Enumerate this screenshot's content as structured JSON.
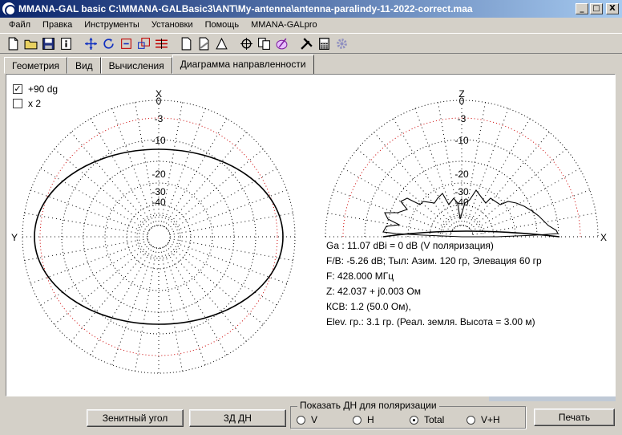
{
  "window": {
    "title": "MMANA-GAL basic C:\\MMANA-GALBasic3\\ANT\\My-antenna\\antenna-paralindy-11-2022-correct.maa",
    "minimize": "_",
    "maximize": "□",
    "close": "X"
  },
  "menu": [
    "Файл",
    "Правка",
    "Инструменты",
    "Установки",
    "Помощь",
    "MMANA-GALpro"
  ],
  "toolbar": {
    "icons": [
      "new-file-icon",
      "open-folder-icon",
      "save-icon",
      "info-icon",
      "move-icon",
      "rotate-icon",
      "stretch-icon",
      "scale-icon",
      "wires-icon",
      "page-icon",
      "page-edit-icon",
      "triangle-icon",
      "crosshair-icon",
      "copy-icon",
      "paint-icon",
      "tools-icon",
      "calculator-icon",
      "gear-icon"
    ]
  },
  "tabs": [
    "Геометрия",
    "Вид",
    "Вычисления",
    "Диаграмма направленности"
  ],
  "active_tab": 3,
  "options": {
    "plus90": {
      "label": "+90 dg",
      "checked": true
    },
    "x2": {
      "label": "x 2",
      "checked": false
    }
  },
  "horizontal_plot": {
    "axis_top": "X",
    "axis_left": "Y",
    "ring_labels": [
      "0",
      "-3",
      "-10",
      "-20",
      "-30",
      "-40"
    ]
  },
  "vertical_plot": {
    "axis_top": "Z",
    "axis_right": "X",
    "ring_labels": [
      "0",
      "-3",
      "-10",
      "-20",
      "-30",
      "-40"
    ]
  },
  "info": [
    "Ga : 11.07 dBi = 0 dB  (V поляризация)",
    "F/B: -5.26 dB; Тыл: Азим. 120 гр, Элевация 60 гр",
    "F: 428.000 МГц",
    "Z: 42.037 + j0.003 Ом",
    "КСВ: 1.2 (50.0 Ом),",
    "Elev. гр.: 3.1 гр. (Реал. земля. Высота = 3.00 м)"
  ],
  "buttons": {
    "zenith": "Зенитный угол",
    "3d": "3Д   ДН",
    "print": "Печать"
  },
  "polarization": {
    "legend": "Показать ДН для поляризации",
    "options": [
      "V",
      "H",
      "Total",
      "V+H"
    ],
    "selected": "Total"
  },
  "colors": {
    "title_start": "#0a246a",
    "title_end": "#a6caf0",
    "reference_ring": "#cc0000",
    "grid": "#000000",
    "pattern": "#000000"
  }
}
